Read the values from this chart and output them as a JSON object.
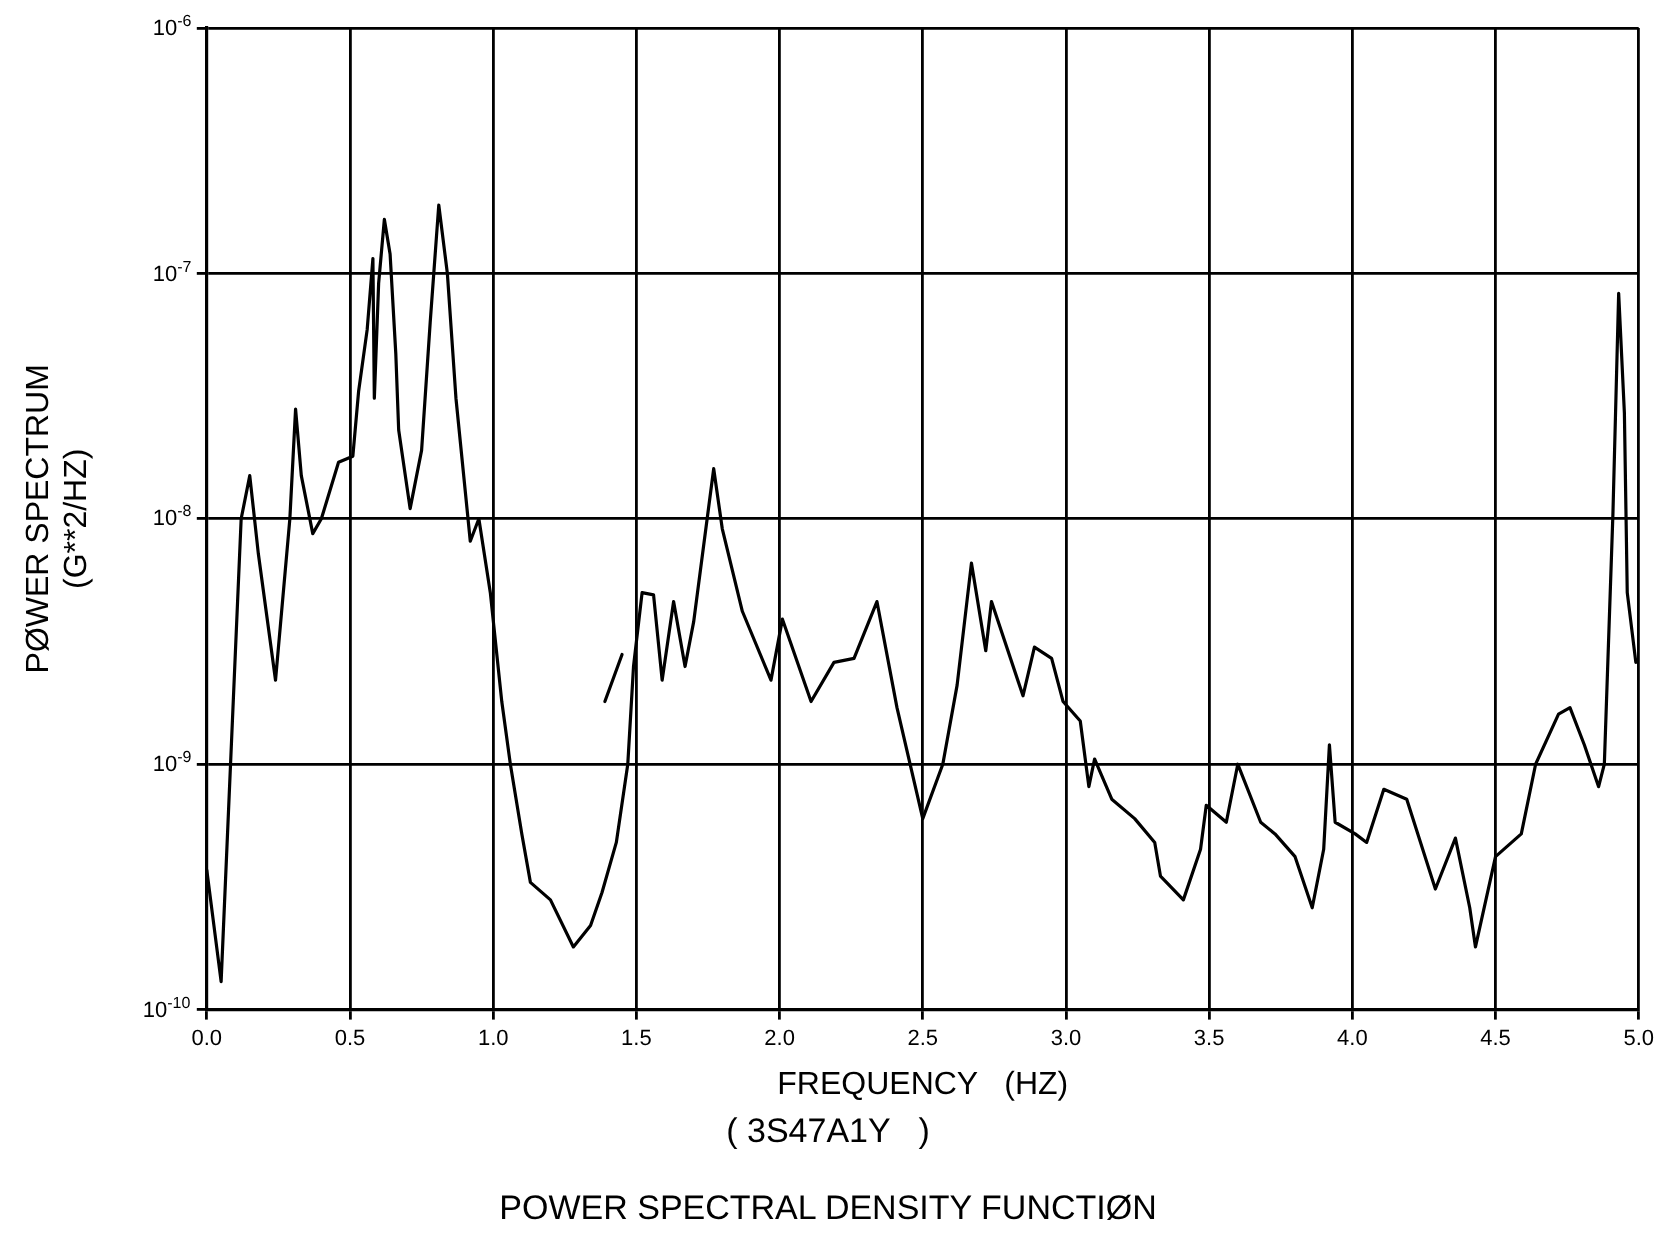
{
  "chart_data": {
    "type": "line",
    "title": "POWER SPECTRAL DENSITY FUNCTIØN",
    "subtitle": "( 3S47A1Y   )",
    "xlabel": "FREQUENCY   (HZ)",
    "ylabel": "PØWER SPECTRUM\n(G**2/HZ)",
    "series": [
      {
        "color": "#000000",
        "x": [
          0,
          0.05,
          0.12,
          0.15,
          0.18,
          0.24,
          0.29,
          0.31,
          0.33,
          0.37,
          0.4,
          0.46,
          0.51,
          0.53,
          0.56,
          0.58,
          0.585,
          0.6,
          0.62,
          0.64,
          0.66,
          0.67,
          0.71,
          0.75,
          0.78,
          0.81,
          0.84,
          0.87,
          0.92,
          0.95,
          0.99,
          1.03,
          1.06,
          1.1,
          1.13,
          1.2,
          1.28,
          1.34,
          1.38,
          1.43,
          1.47,
          1.49,
          1.52,
          1.56,
          1.59,
          1.63,
          1.67,
          1.7,
          1.77,
          1.8,
          1.87,
          1.97,
          2.01,
          2.11,
          2.19,
          2.26,
          2.34,
          2.41,
          2.5,
          2.57,
          2.62,
          2.67,
          2.72,
          2.74,
          2.85,
          2.89,
          2.95,
          2.99,
          3.05,
          3.08,
          3.1,
          3.16,
          3.24,
          3.31,
          3.33,
          3.41,
          3.47,
          3.49,
          3.56,
          3.6,
          3.68,
          3.73,
          3.8,
          3.86,
          3.9,
          3.92,
          3.94,
          4.01,
          4.05,
          4.11,
          4.19,
          4.29,
          4.36,
          4.41,
          4.43,
          4.5,
          4.59,
          4.64,
          4.72,
          4.76,
          4.81,
          4.86,
          4.88,
          4.91,
          4.93,
          4.95,
          4.96,
          4.99
        ],
        "values": [
          3.7e-10,
          1.3e-10,
          1e-08,
          1.5e-08,
          7.2e-09,
          2.2e-09,
          1e-08,
          2.8e-08,
          1.5e-08,
          8.7e-09,
          1e-08,
          1.7e-08,
          1.8e-08,
          3.3e-08,
          5.9e-08,
          1.15e-07,
          3.1e-08,
          9.1e-08,
          1.66e-07,
          1.2e-07,
          4.7e-08,
          2.3e-08,
          1.1e-08,
          1.9e-08,
          6.3e-08,
          1.9e-07,
          1e-07,
          3.1e-08,
          8.1e-09,
          1e-08,
          5e-09,
          1.8e-09,
          1e-09,
          5.2e-10,
          3.3e-10,
          2.8e-10,
          1.8e-10,
          2.2e-10,
          3e-10,
          4.8e-10,
          1e-09,
          2.5e-09,
          5e-09,
          4.9e-09,
          2.2e-09,
          4.6e-09,
          2.5e-09,
          3.8e-09,
          1.6e-08,
          9.1e-09,
          4.2e-09,
          2.2e-09,
          3.9e-09,
          1.8e-09,
          2.6e-09,
          2.7e-09,
          4.6e-09,
          1.7e-09,
          6e-10,
          1e-09,
          2.1e-09,
          6.6e-09,
          2.9e-09,
          4.6e-09,
          1.9e-09,
          3e-09,
          2.7e-09,
          1.8e-09,
          1.5e-09,
          8.1e-10,
          1.05e-09,
          7.2e-10,
          6e-10,
          4.8e-10,
          3.5e-10,
          2.8e-10,
          4.5e-10,
          6.8e-10,
          5.8e-10,
          1e-09,
          5.8e-10,
          5.2e-10,
          4.2e-10,
          2.6e-10,
          4.5e-10,
          1.2e-09,
          5.8e-10,
          5.2e-10,
          4.8e-10,
          7.9e-10,
          7.2e-10,
          3.1e-10,
          5e-10,
          2.6e-10,
          1.8e-10,
          4.2e-10,
          5.2e-10,
          1e-09,
          1.6e-09,
          1.7e-09,
          1.2e-09,
          8.1e-10,
          1e-09,
          1.05e-08,
          8.3e-08,
          2.7e-08,
          5e-09,
          2.6e-09
        ]
      },
      {
        "color": "#000000",
        "x": [
          1.39,
          1.45
        ],
        "values": [
          1.8e-09,
          2.8e-09
        ]
      }
    ],
    "xlim": [
      0,
      5
    ],
    "ylim": [
      1e-10,
      1e-06
    ],
    "xticks": [
      {
        "value": 0,
        "label": "0.0"
      },
      {
        "value": 0.5,
        "label": "0.5"
      },
      {
        "value": 1,
        "label": "1.0"
      },
      {
        "value": 1.5,
        "label": "1.5"
      },
      {
        "value": 2,
        "label": "2.0"
      },
      {
        "value": 2.5,
        "label": "2.5"
      },
      {
        "value": 3,
        "label": "3.0"
      },
      {
        "value": 3.5,
        "label": "3.5"
      },
      {
        "value": 4,
        "label": "4.0"
      },
      {
        "value": 4.5,
        "label": "4.5"
      },
      {
        "value": 5,
        "label": "5.0"
      }
    ],
    "yticks": [
      {
        "value": 1e-10,
        "label": "10$^{-10}$"
      },
      {
        "value": 1e-09,
        "label": "10$^{-9}$"
      },
      {
        "value": 1e-08,
        "label": "10$^{-8}$"
      },
      {
        "value": 1e-07,
        "label": "10$^{-7}$"
      },
      {
        "value": 1e-06,
        "label": "10$^{-6}$"
      }
    ],
    "log": "y",
    "grid": true,
    "legend": false,
    "marker": "none",
    "line_style": "solid"
  }
}
